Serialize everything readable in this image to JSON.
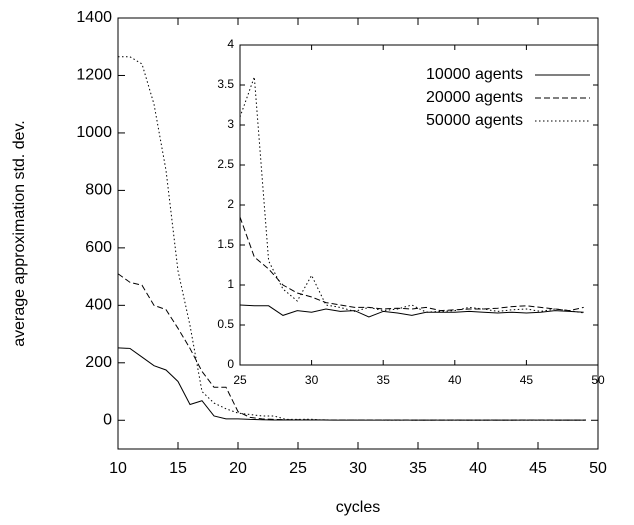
{
  "chart_data": [
    {
      "type": "line",
      "x_label": "cycles",
      "y_label": "average approximation std. dev.",
      "x": [
        10,
        11,
        12,
        13,
        14,
        15,
        16,
        17,
        18,
        19,
        20,
        21,
        22,
        23,
        24,
        25,
        26,
        27,
        28,
        29,
        30,
        31,
        32,
        33,
        34,
        35,
        36,
        37,
        38,
        39,
        40,
        41,
        42,
        43,
        44,
        45,
        46,
        47,
        48,
        49
      ],
      "series": [
        {
          "color": "#000000",
          "style": "solid",
          "values": [
            252,
            250,
            220,
            190,
            175,
            135,
            55,
            68,
            15,
            5,
            5,
            3,
            2,
            1,
            1,
            0.75,
            0.74,
            0.74,
            0.62,
            0.68,
            0.66,
            0.7,
            0.67,
            0.68,
            0.6,
            0.67,
            0.65,
            0.62,
            0.66,
            0.66,
            0.66,
            0.67,
            0.66,
            0.65,
            0.66,
            0.65,
            0.66,
            0.68,
            0.67,
            0.66
          ]
        },
        {
          "color": "#000000",
          "style": "dashed",
          "values": [
            510,
            480,
            470,
            400,
            385,
            320,
            250,
            170,
            115,
            115,
            30,
            10,
            5,
            3,
            2,
            1.85,
            1.35,
            1.2,
            1.0,
            0.9,
            0.85,
            0.78,
            0.75,
            0.72,
            0.72,
            0.7,
            0.71,
            0.7,
            0.72,
            0.68,
            0.69,
            0.7,
            0.7,
            0.71,
            0.73,
            0.74,
            0.72,
            0.7,
            0.68,
            0.72
          ]
        },
        {
          "color": "#000000",
          "style": "dotted",
          "values": [
            1265,
            1265,
            1240,
            1100,
            870,
            520,
            330,
            100,
            60,
            40,
            25,
            20,
            15,
            15,
            3,
            3.1,
            3.6,
            1.3,
            0.95,
            0.8,
            1.12,
            0.75,
            0.72,
            0.67,
            0.72,
            0.68,
            0.7,
            0.75,
            0.66,
            0.67,
            0.68,
            0.72,
            0.7,
            0.67,
            0.69,
            0.7,
            0.67,
            0.7,
            0.68,
            0.65
          ]
        }
      ],
      "xlim": [
        10,
        50
      ],
      "xticks": [
        10,
        15,
        20,
        25,
        30,
        35,
        40,
        45,
        50
      ],
      "ylim": [
        -100,
        1400
      ],
      "yticks": [
        0,
        200,
        400,
        600,
        800,
        1000,
        1200,
        1400
      ]
    },
    {
      "type": "line",
      "x": [
        25,
        26,
        27,
        28,
        29,
        30,
        31,
        32,
        33,
        34,
        35,
        36,
        37,
        38,
        39,
        40,
        41,
        42,
        43,
        44,
        45,
        46,
        47,
        48,
        49
      ],
      "series": [
        {
          "name": "10000 agents",
          "color": "#000000",
          "style": "solid",
          "values": [
            0.75,
            0.74,
            0.74,
            0.62,
            0.68,
            0.66,
            0.7,
            0.67,
            0.68,
            0.6,
            0.67,
            0.65,
            0.62,
            0.66,
            0.66,
            0.66,
            0.67,
            0.66,
            0.65,
            0.66,
            0.65,
            0.66,
            0.68,
            0.67,
            0.66
          ]
        },
        {
          "name": "20000 agents",
          "color": "#000000",
          "style": "dashed",
          "values": [
            1.85,
            1.35,
            1.2,
            1.0,
            0.9,
            0.85,
            0.78,
            0.75,
            0.72,
            0.72,
            0.7,
            0.71,
            0.7,
            0.72,
            0.68,
            0.69,
            0.7,
            0.7,
            0.71,
            0.73,
            0.74,
            0.72,
            0.7,
            0.68,
            0.72
          ]
        },
        {
          "name": "50000 agents",
          "color": "#000000",
          "style": "dotted",
          "values": [
            3.1,
            3.6,
            1.3,
            0.95,
            0.8,
            1.12,
            0.75,
            0.72,
            0.67,
            0.72,
            0.68,
            0.7,
            0.75,
            0.66,
            0.67,
            0.68,
            0.72,
            0.7,
            0.67,
            0.69,
            0.7,
            0.67,
            0.7,
            0.68,
            0.65
          ]
        }
      ],
      "xlim": [
        25,
        50
      ],
      "xticks": [
        25,
        30,
        35,
        40,
        45,
        50
      ],
      "ylim": [
        0,
        4
      ],
      "yticks": [
        0,
        0.5,
        1,
        1.5,
        2,
        2.5,
        3,
        3.5,
        4
      ],
      "legend": "top-right"
    }
  ]
}
